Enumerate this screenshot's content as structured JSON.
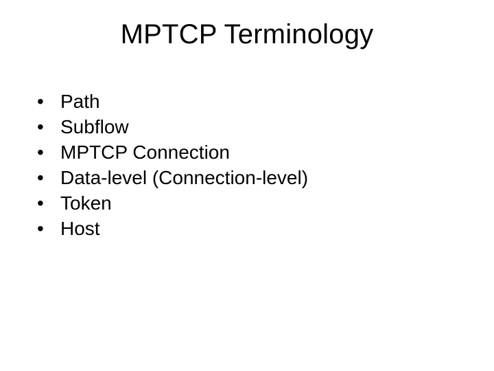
{
  "slide": {
    "title": "MPTCP Terminology",
    "title_fontsize": 40,
    "title_color": "#000000",
    "body_fontsize": 28,
    "body_color": "#000000",
    "bullet_char": "•",
    "background_color": "#ffffff",
    "bullets": [
      "Path",
      "Subflow",
      "MPTCP Connection",
      "Data-level (Connection-level)",
      "Token",
      "Host"
    ]
  }
}
